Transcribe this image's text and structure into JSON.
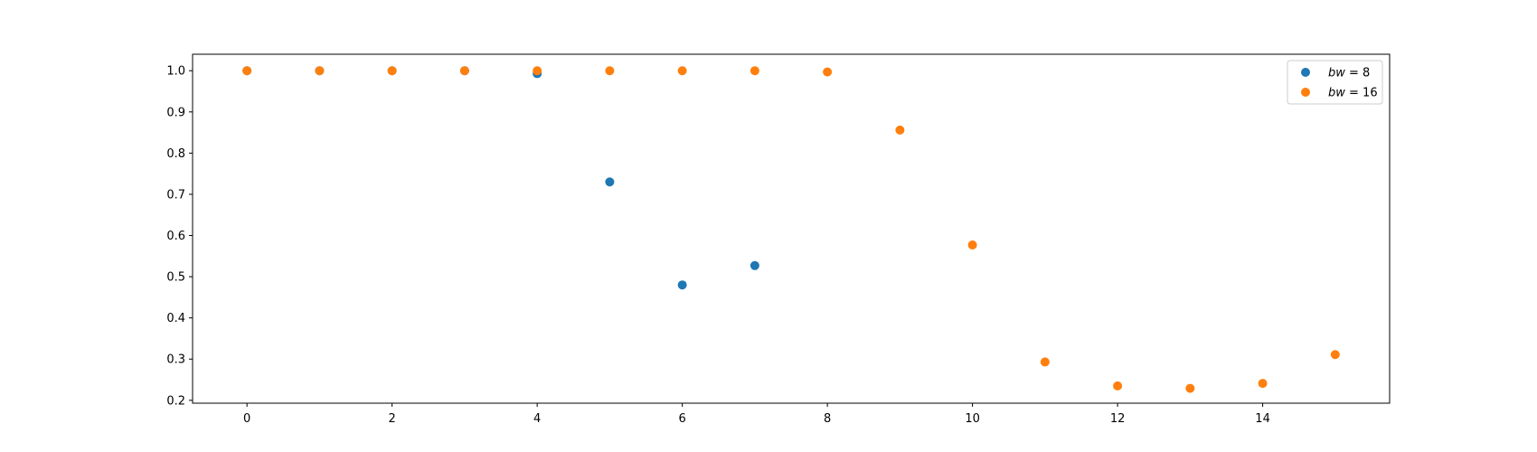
{
  "chart_data": {
    "type": "scatter",
    "title": "",
    "xlabel": "",
    "ylabel": "",
    "xlim": [
      -0.75,
      15.75
    ],
    "ylim": [
      0.193,
      1.04
    ],
    "xticks": [
      0,
      2,
      4,
      6,
      8,
      10,
      12,
      14
    ],
    "yticks": [
      0.2,
      0.3,
      0.4,
      0.5,
      0.6,
      0.7,
      0.8,
      0.9,
      1.0
    ],
    "grid": false,
    "legend_position": "top-right",
    "series": [
      {
        "name_var": "bw",
        "name_rest": " = 8",
        "color": "#1f77b4",
        "x": [
          0,
          1,
          2,
          3,
          4,
          5,
          6,
          7
        ],
        "y": [
          1.0,
          1.0,
          1.0,
          1.0,
          0.993,
          0.73,
          0.48,
          0.527
        ]
      },
      {
        "name_var": "bw",
        "name_rest": " = 16",
        "color": "#ff7f0e",
        "x": [
          0,
          1,
          2,
          3,
          4,
          5,
          6,
          7,
          8,
          9,
          10,
          11,
          12,
          13,
          14,
          15
        ],
        "y": [
          1.0,
          1.0,
          1.0,
          1.0,
          1.0,
          1.0,
          1.0,
          1.0,
          0.997,
          0.856,
          0.577,
          0.293,
          0.235,
          0.229,
          0.241,
          0.311
        ]
      }
    ]
  }
}
